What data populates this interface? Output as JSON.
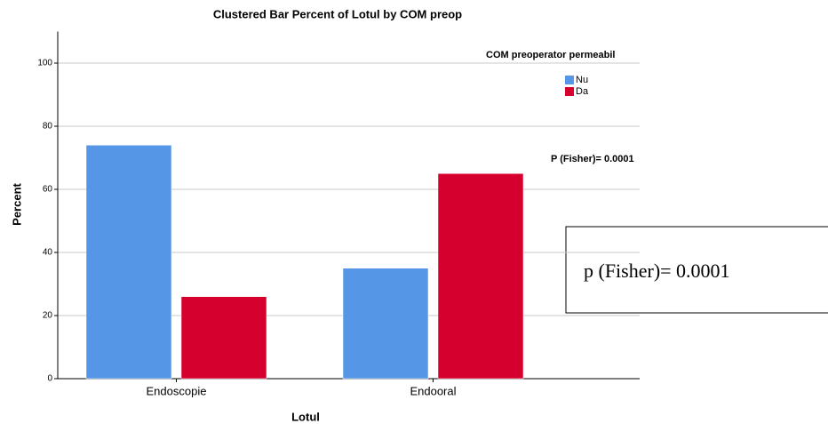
{
  "chart_data": {
    "type": "bar",
    "title": "Clustered Bar Percent of Lotul by COM preop",
    "x_label": "Lotul",
    "y_label": "Percent",
    "categories": [
      "Endoscopie",
      "Endooral"
    ],
    "legend_title": "COM preoperator permeabil",
    "series": [
      {
        "name": "Nu",
        "color": "#5596e6",
        "values": [
          74,
          35
        ]
      },
      {
        "name": "Da",
        "color": "#d6002f",
        "values": [
          26,
          65
        ]
      }
    ],
    "ylim": [
      0,
      110
    ],
    "yticks": [
      0,
      20,
      40,
      60,
      80,
      100
    ],
    "grid": true,
    "annotations": [
      "P (Fisher)= 0.0001",
      "p (Fisher)= 0.0001"
    ]
  }
}
